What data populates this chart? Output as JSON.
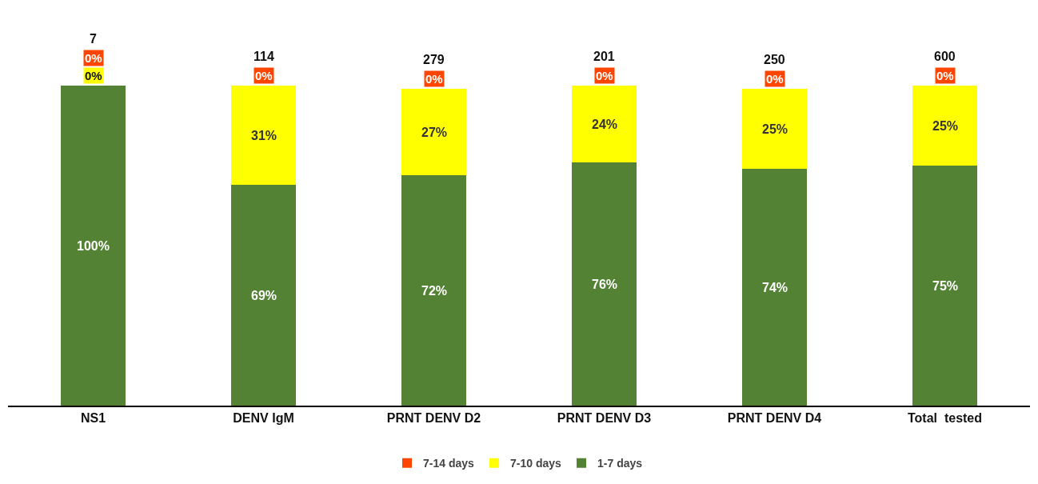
{
  "chart_data": {
    "type": "bar",
    "stacked": true,
    "categories": [
      "NS1",
      "DENV IgM",
      "PRNT DENV D2",
      "PRNT DENV D3",
      "PRNT DENV D4",
      "Total  tested"
    ],
    "series": [
      {
        "name": "1-7 days",
        "color": "#548235",
        "values": [
          100,
          69,
          72,
          76,
          74,
          75
        ],
        "value_labels": [
          "100%",
          "69%",
          "72%",
          "76%",
          "74%",
          "75%"
        ]
      },
      {
        "name": "7-10 days",
        "color": "#ffff00",
        "values": [
          0,
          31,
          27,
          24,
          25,
          25
        ],
        "value_labels": [
          "0%",
          "31%",
          "27%",
          "24%",
          "25%",
          "25%"
        ]
      },
      {
        "name": "7-14 days",
        "color": "#ff4500",
        "values": [
          0,
          0,
          0,
          0,
          0,
          0
        ],
        "value_labels": [
          "0%",
          "0%",
          "0%",
          "0%",
          "0%",
          "0%"
        ]
      }
    ],
    "annotations": [
      "7",
      "114",
      "279",
      "201",
      "250",
      "600"
    ],
    "tick_labels": "x",
    "grid": false,
    "legend": "bottom"
  }
}
